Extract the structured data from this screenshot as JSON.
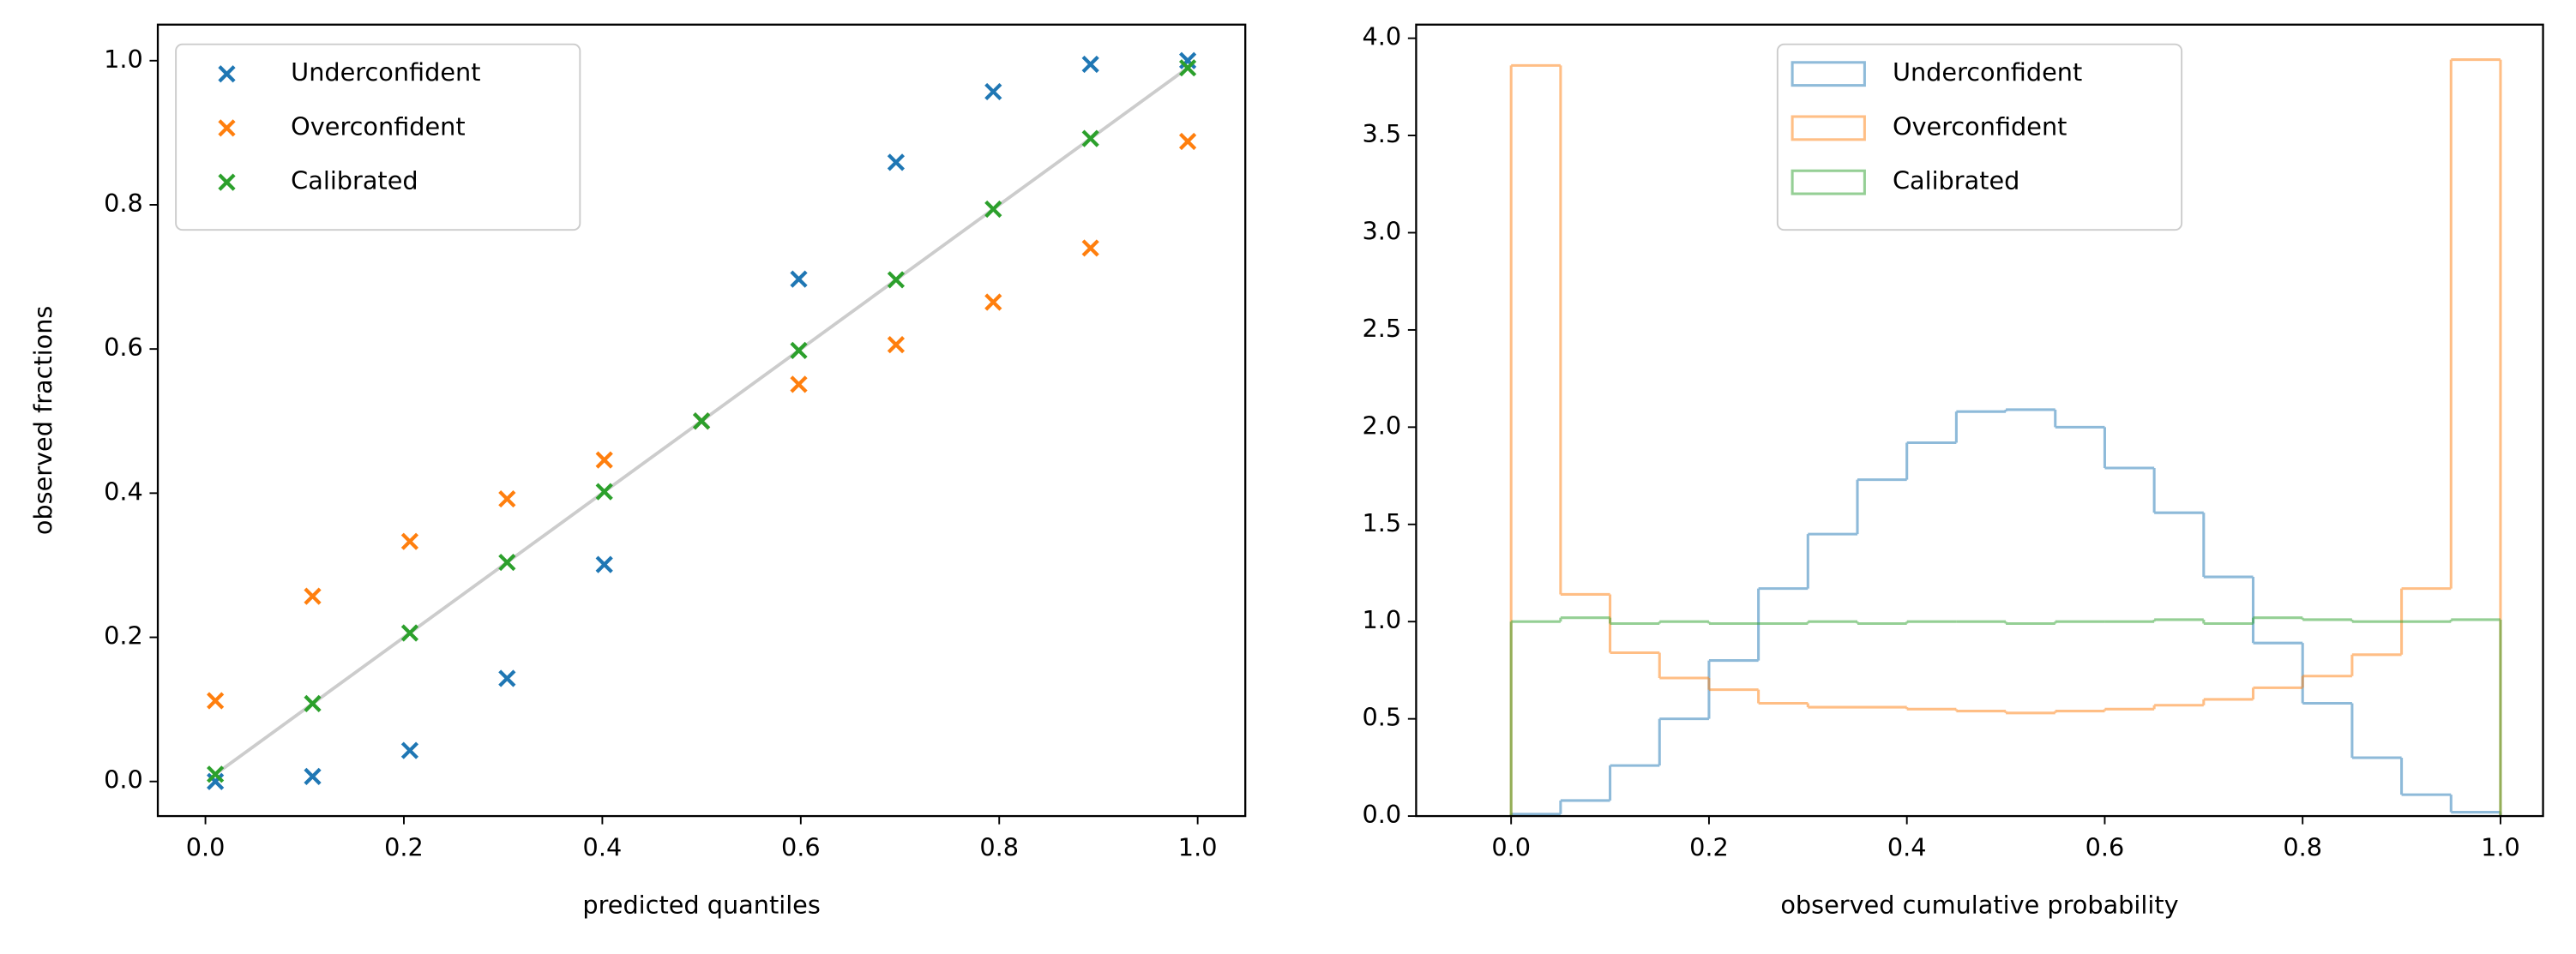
{
  "chart_data": [
    {
      "type": "scatter",
      "xlabel": "predicted quantiles",
      "ylabel": "observed fractions",
      "x": [
        0.01,
        0.108,
        0.206,
        0.304,
        0.402,
        0.5,
        0.598,
        0.696,
        0.794,
        0.892,
        0.99
      ],
      "series": [
        {
          "name": "Underconfident",
          "color": "#1f77b4",
          "values": [
            0.0,
            0.007,
            0.043,
            0.143,
            0.301,
            0.5,
            0.697,
            0.859,
            0.957,
            0.995,
            1.0
          ]
        },
        {
          "name": "Overconfident",
          "color": "#ff7f0e",
          "values": [
            0.112,
            0.257,
            0.333,
            0.392,
            0.446,
            0.5,
            0.551,
            0.606,
            0.665,
            0.74,
            0.888
          ]
        },
        {
          "name": "Calibrated",
          "color": "#2ca02c",
          "values": [
            0.01,
            0.108,
            0.206,
            0.304,
            0.402,
            0.5,
            0.598,
            0.696,
            0.794,
            0.892,
            0.99
          ]
        }
      ],
      "reference_line": {
        "x": [
          0.01,
          0.99
        ],
        "y": [
          0.01,
          0.99
        ],
        "color": "#cccccc"
      },
      "xlim": [
        -0.048,
        1.048
      ],
      "ylim": [
        -0.048,
        1.05
      ],
      "xticks": [
        {
          "value": 0,
          "label": "0.0"
        },
        0.2,
        0.4,
        0.6,
        0.8,
        {
          "value": 1,
          "label": "1.0"
        }
      ],
      "yticks": [
        {
          "value": 0,
          "label": "0.0"
        },
        0.2,
        0.4,
        0.6,
        0.8,
        {
          "value": 1,
          "label": "1.0"
        }
      ],
      "grid": false,
      "legend": "upper left"
    },
    {
      "type": "histogram",
      "xlabel": "observed cumulative probability",
      "bins": [
        0,
        0.05,
        0.1,
        0.15,
        0.2,
        0.25,
        0.3,
        0.35,
        0.4,
        0.45,
        0.5,
        0.55,
        0.6,
        0.65,
        0.7,
        0.75,
        0.8,
        0.85,
        0.9,
        0.95,
        1
      ],
      "series": [
        {
          "name": "Underconfident",
          "color": "#1f77b4",
          "values": [
            0.01,
            0.08,
            0.26,
            0.5,
            0.8,
            1.17,
            1.45,
            1.73,
            1.92,
            2.08,
            2.09,
            2.0,
            1.79,
            1.56,
            1.23,
            0.89,
            0.58,
            0.3,
            0.11,
            0.02
          ]
        },
        {
          "name": "Overconfident",
          "color": "#ff7f0e",
          "values": [
            3.86,
            1.14,
            0.84,
            0.71,
            0.65,
            0.58,
            0.56,
            0.56,
            0.55,
            0.54,
            0.53,
            0.54,
            0.55,
            0.57,
            0.6,
            0.66,
            0.72,
            0.83,
            1.17,
            3.89
          ]
        },
        {
          "name": "Calibrated",
          "color": "#2ca02c",
          "values": [
            1.0,
            1.02,
            0.99,
            1.0,
            0.99,
            0.99,
            1.0,
            0.99,
            1.0,
            1.0,
            0.99,
            1.0,
            1.0,
            1.01,
            0.99,
            1.02,
            1.01,
            1.0,
            1.0,
            1.01
          ]
        }
      ],
      "xlim": [
        -0.096,
        1.043
      ],
      "ylim": [
        0,
        4.07
      ],
      "xticks": [
        {
          "value": 0,
          "label": "0.0"
        },
        0.2,
        0.4,
        0.6,
        0.8,
        {
          "value": 1,
          "label": "1.0"
        }
      ],
      "yticks": [
        {
          "value": 0,
          "label": "0.0"
        },
        0.5,
        {
          "value": 1,
          "label": "1.0"
        },
        1.5,
        {
          "value": 2,
          "label": "2.0"
        },
        2.5,
        {
          "value": 3,
          "label": "3.0"
        },
        3.5,
        {
          "value": 4,
          "label": "4.0"
        }
      ],
      "grid": false,
      "legend": "upper center"
    }
  ]
}
